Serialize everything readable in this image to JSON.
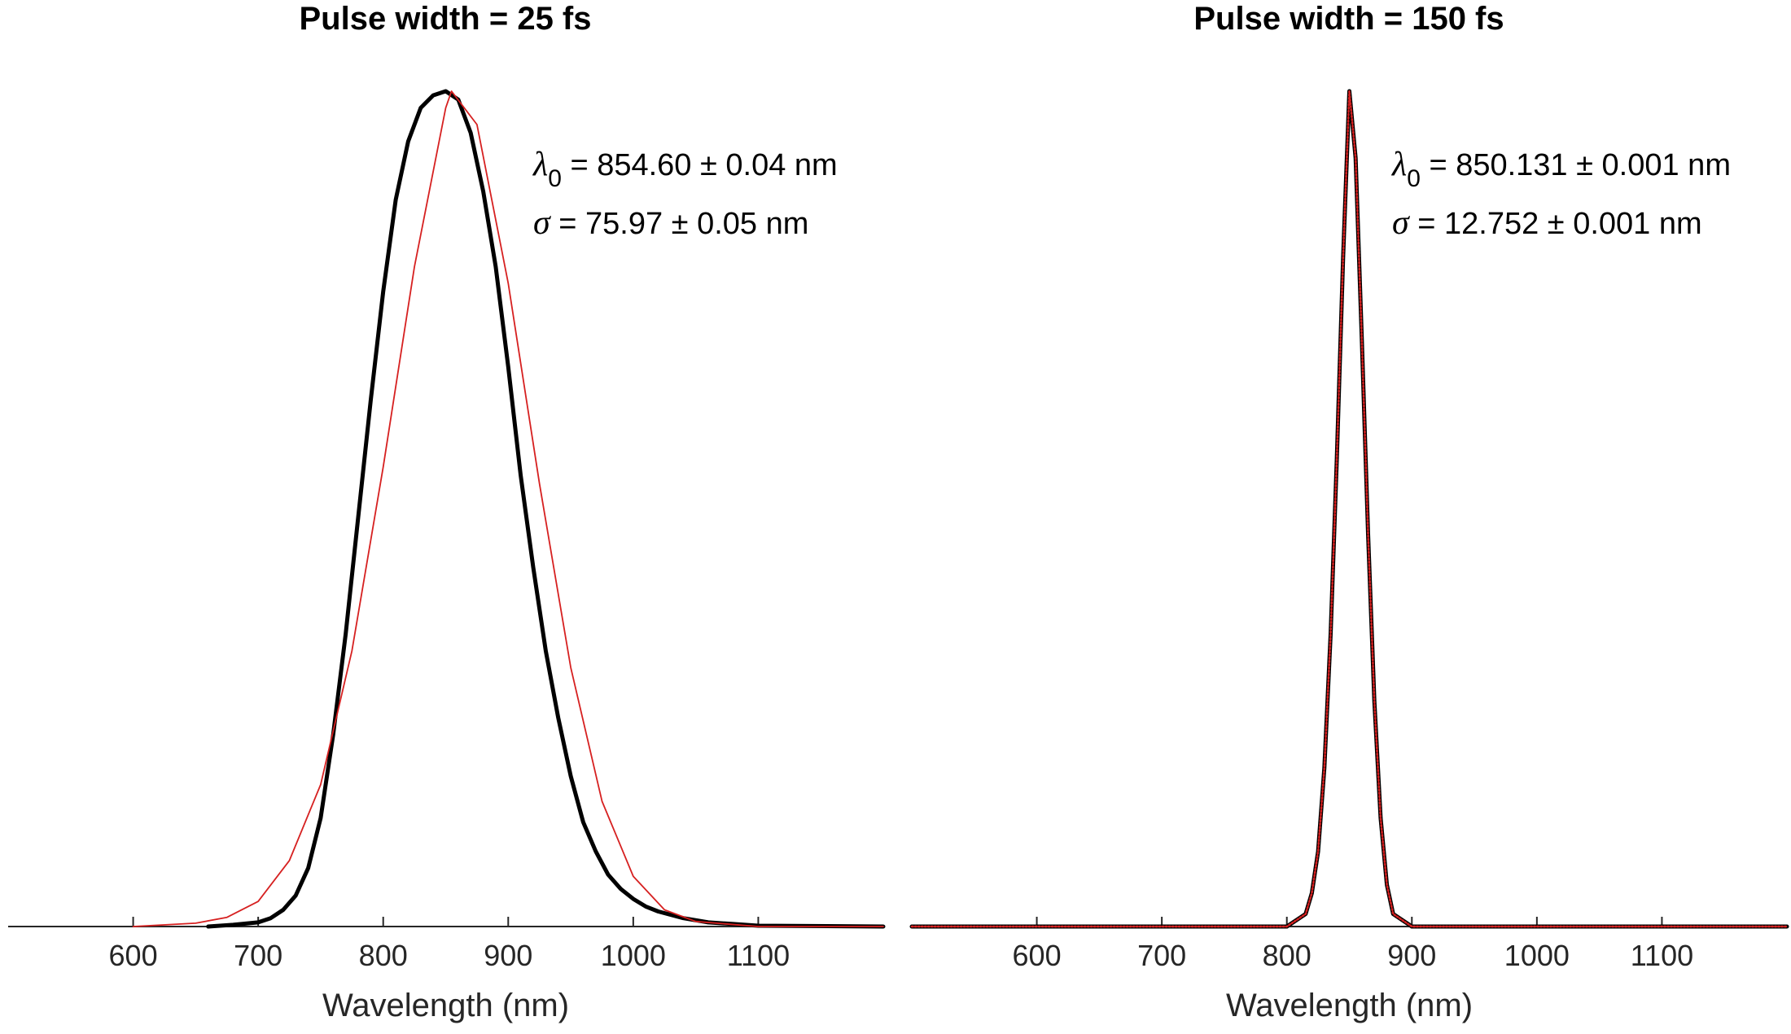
{
  "chart_data": [
    {
      "type": "line",
      "title": "Pulse width = 25 fs",
      "xlabel": "Wavelength (nm)",
      "ylabel": "",
      "xlim": [
        500,
        1200
      ],
      "ylim": [
        0,
        1
      ],
      "xticks": [
        600,
        700,
        800,
        900,
        1000,
        1100
      ],
      "grid": false,
      "annotations": [
        {
          "symbol": "λ",
          "sub": "0",
          "text": " = 854.60 ± 0.04 nm"
        },
        {
          "symbol": "σ",
          "sub": "",
          "text": " = 75.97 ± 0.05 nm"
        }
      ],
      "series": [
        {
          "color": "#000000",
          "style": "thick",
          "x": [
            660,
            680,
            700,
            710,
            720,
            730,
            740,
            750,
            760,
            770,
            780,
            790,
            800,
            810,
            820,
            830,
            840,
            850,
            860,
            870,
            880,
            890,
            900,
            910,
            920,
            930,
            940,
            950,
            960,
            970,
            980,
            990,
            1000,
            1010,
            1020,
            1040,
            1060,
            1080,
            1100,
            1200
          ],
          "y": [
            0.0,
            0.002,
            0.005,
            0.01,
            0.02,
            0.037,
            0.07,
            0.13,
            0.23,
            0.35,
            0.49,
            0.63,
            0.76,
            0.87,
            0.94,
            0.98,
            0.995,
            1.0,
            0.99,
            0.95,
            0.88,
            0.79,
            0.67,
            0.54,
            0.43,
            0.33,
            0.25,
            0.18,
            0.125,
            0.09,
            0.062,
            0.045,
            0.033,
            0.024,
            0.018,
            0.01,
            0.005,
            0.003,
            0.001,
            0.0
          ]
        },
        {
          "color": "#d62020",
          "style": "thin",
          "x": [
            600,
            650,
            675,
            700,
            725,
            750,
            775,
            800,
            825,
            850,
            854.6,
            875,
            900,
            925,
            950,
            975,
            1000,
            1025,
            1050,
            1100,
            1200
          ],
          "y": [
            0.0,
            0.004,
            0.011,
            0.03,
            0.079,
            0.17,
            0.33,
            0.55,
            0.79,
            0.98,
            1.0,
            0.96,
            0.77,
            0.53,
            0.31,
            0.15,
            0.06,
            0.02,
            0.006,
            0.0,
            0.0
          ]
        }
      ]
    },
    {
      "type": "line",
      "title": "Pulse width = 150 fs",
      "xlabel": "Wavelength (nm)",
      "ylabel": "",
      "xlim": [
        500,
        1200
      ],
      "ylim": [
        0,
        1
      ],
      "xticks": [
        600,
        700,
        800,
        900,
        1000,
        1100
      ],
      "grid": false,
      "annotations": [
        {
          "symbol": "λ",
          "sub": "0",
          "text": " = 850.131 ± 0.001 nm"
        },
        {
          "symbol": "σ",
          "sub": "",
          "text": " = 12.752 ± 0.001 nm"
        }
      ],
      "series": [
        {
          "color": "#000000",
          "style": "thick",
          "x": [
            500,
            800,
            815,
            820,
            825,
            830,
            835,
            840,
            845,
            850,
            855,
            860,
            865,
            870,
            875,
            880,
            885,
            900,
            1200
          ],
          "y": [
            0.0,
            0.0,
            0.015,
            0.04,
            0.09,
            0.19,
            0.35,
            0.56,
            0.8,
            1.0,
            0.92,
            0.7,
            0.47,
            0.27,
            0.13,
            0.05,
            0.015,
            0.0,
            0.0
          ]
        },
        {
          "color": "#d62020",
          "style": "dotted",
          "x": [
            500,
            800,
            815,
            820,
            825,
            830,
            835,
            840,
            845,
            850,
            855,
            860,
            865,
            870,
            875,
            880,
            885,
            900,
            1200
          ],
          "y": [
            0.0,
            0.0,
            0.015,
            0.04,
            0.09,
            0.19,
            0.35,
            0.56,
            0.8,
            1.0,
            0.92,
            0.7,
            0.47,
            0.27,
            0.13,
            0.05,
            0.015,
            0.0,
            0.0
          ]
        }
      ]
    }
  ]
}
